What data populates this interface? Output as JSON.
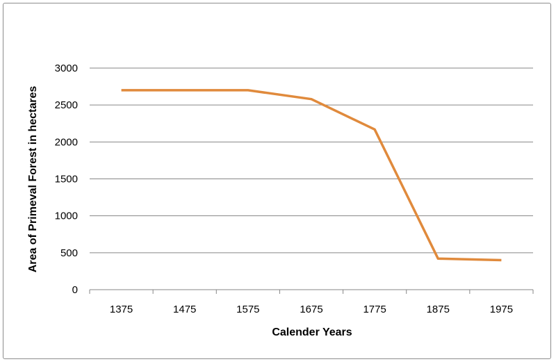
{
  "chart_data": {
    "type": "line",
    "title": "",
    "xlabel": "Calender Years",
    "ylabel": "Area of Primeval Forest in hectares",
    "categories": [
      "1375",
      "1475",
      "1575",
      "1675",
      "1775",
      "1875",
      "1975"
    ],
    "series": [
      {
        "values": [
          2700,
          2700,
          2700,
          2580,
          2170,
          420,
          400
        ],
        "color": "#e08a3c"
      }
    ],
    "ylim": [
      0,
      3000
    ],
    "yticks": [
      0,
      500,
      1000,
      1500,
      2000,
      2500,
      3000
    ],
    "grid": "horizontal",
    "legend": "none"
  }
}
